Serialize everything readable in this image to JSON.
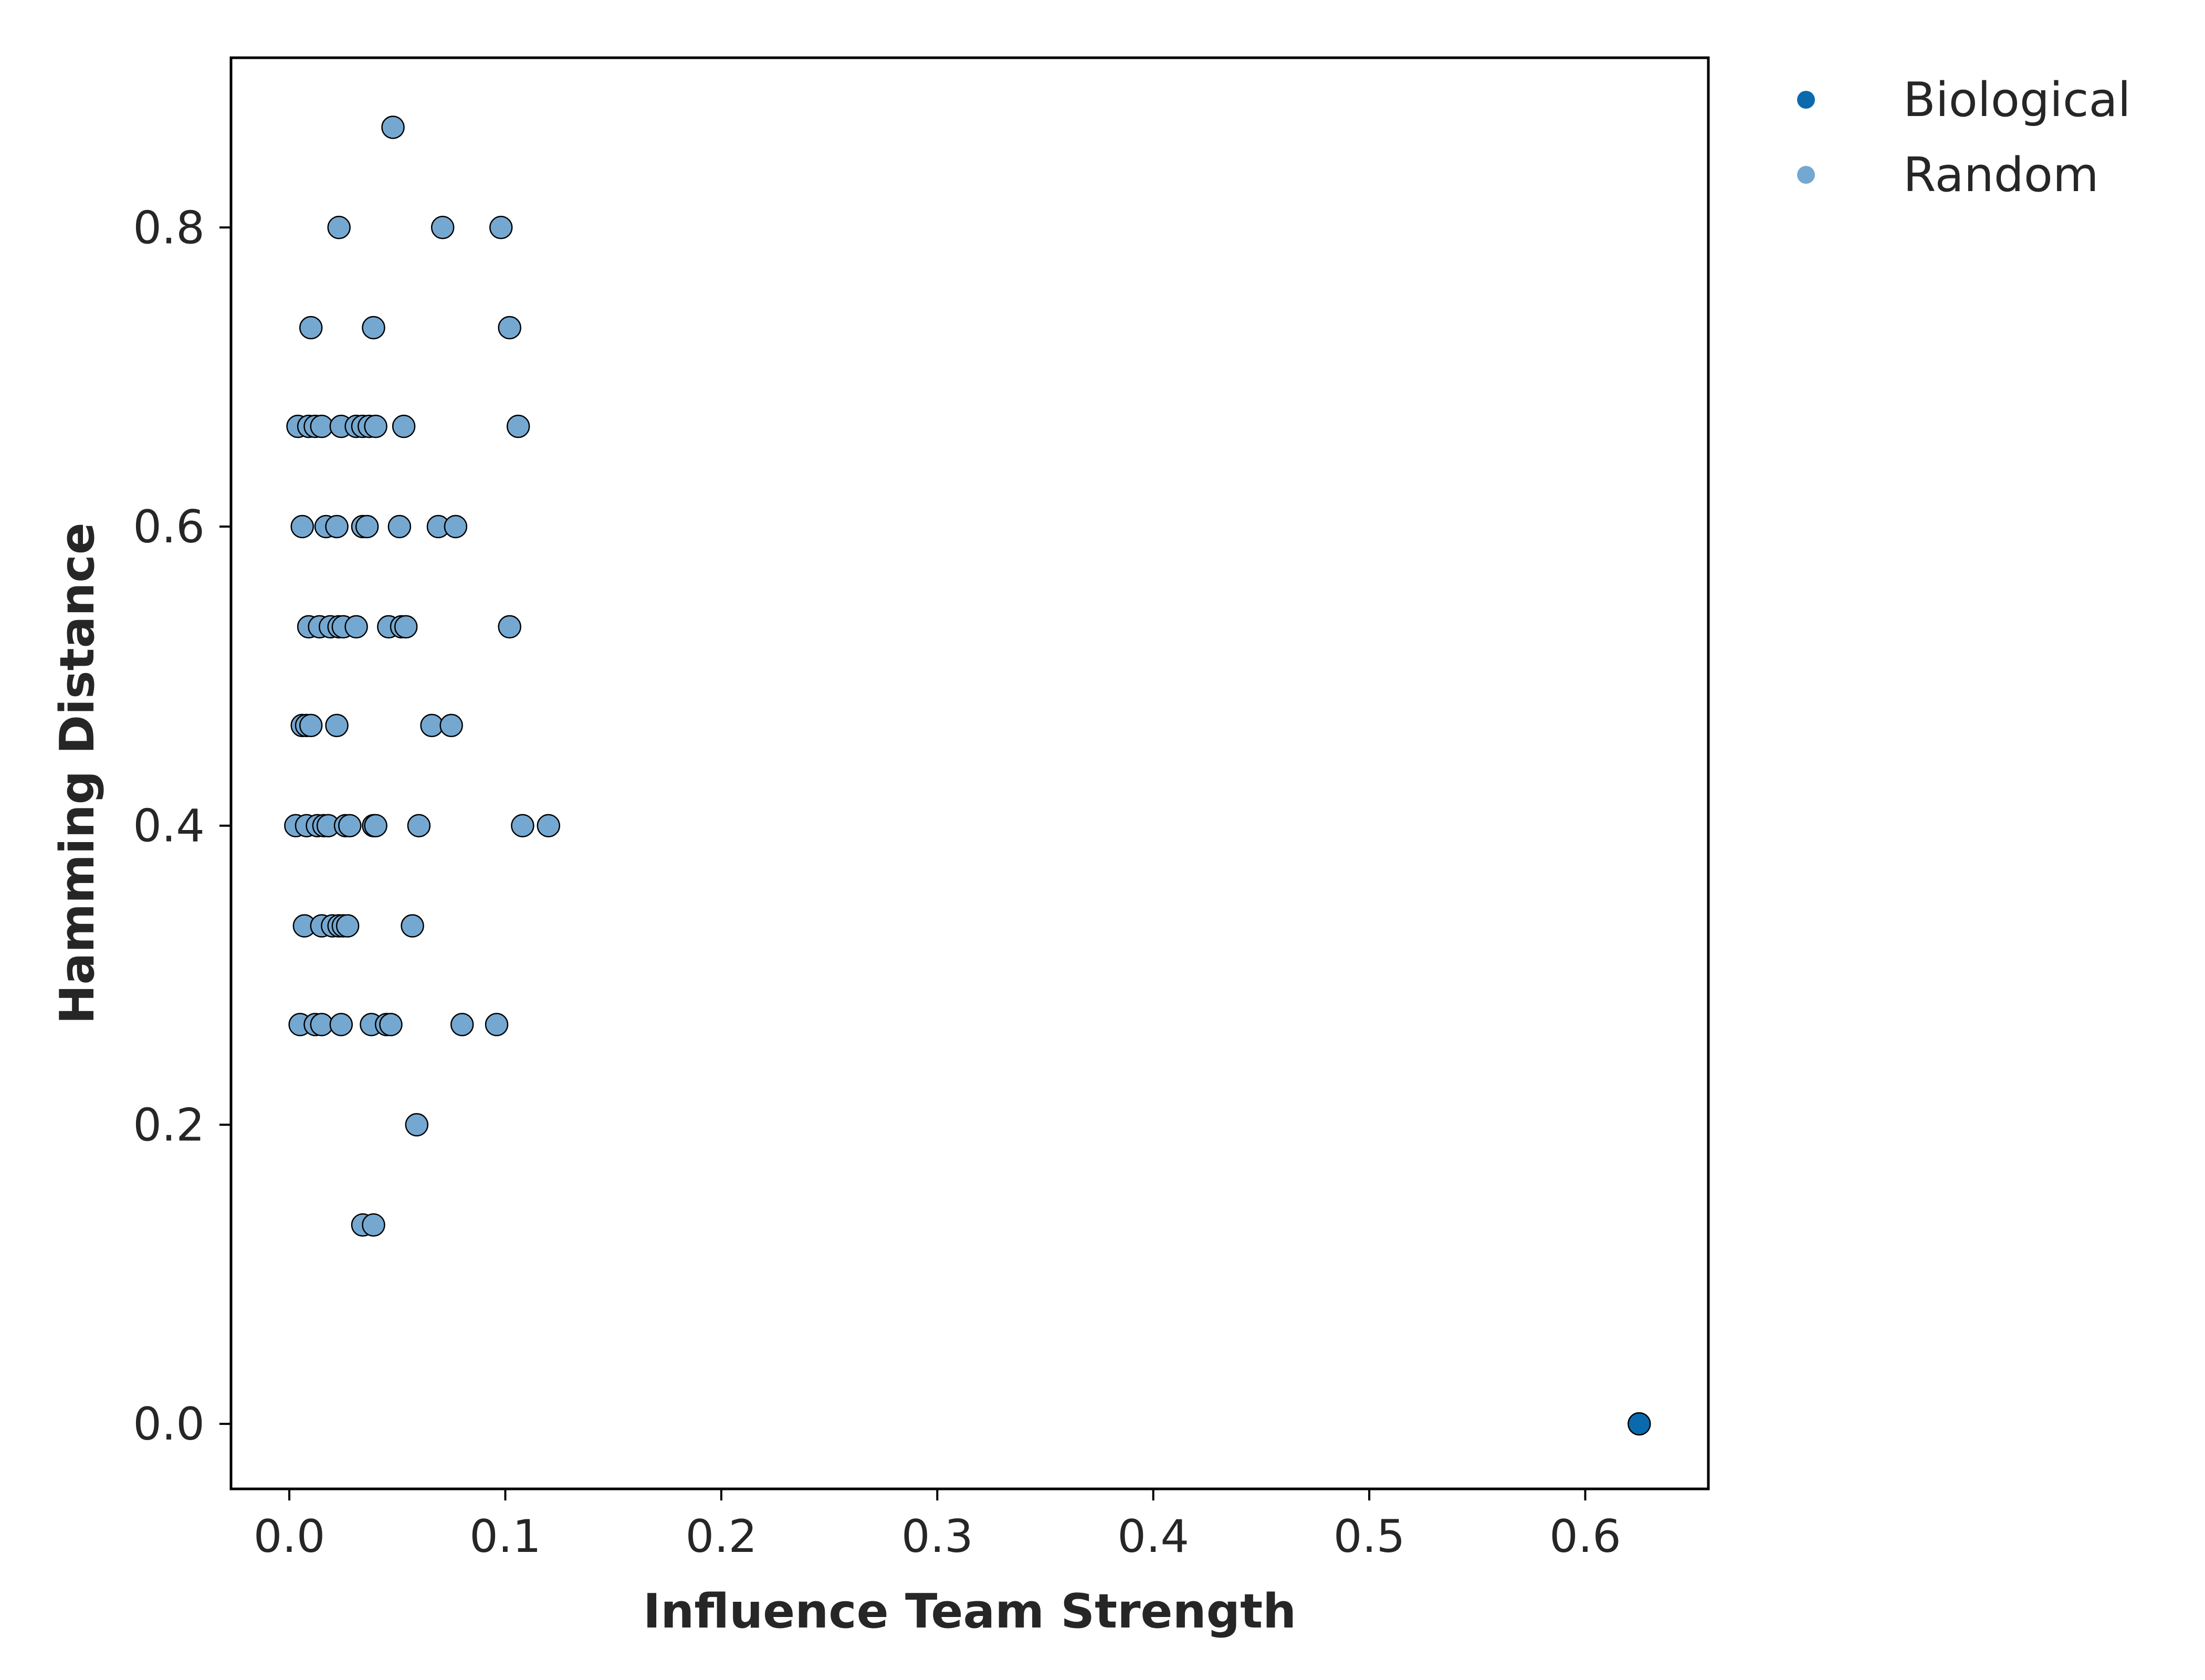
{
  "chart_data": {
    "type": "scatter",
    "title": "",
    "xlabel": "Influence Team Strength",
    "ylabel": "Hamming Distance",
    "xlim": [
      -0.027,
      0.657
    ],
    "ylim": [
      -0.0435,
      0.9135
    ],
    "xticks": [
      0.0,
      0.1,
      0.2,
      0.3,
      0.4,
      0.5,
      0.6
    ],
    "xtick_labels": [
      "0.0",
      "0.1",
      "0.2",
      "0.3",
      "0.4",
      "0.5",
      "0.6"
    ],
    "yticks": [
      0.0,
      0.2,
      0.4,
      0.6,
      0.8
    ],
    "ytick_labels": [
      "0.0",
      "0.2",
      "0.4",
      "0.6",
      "0.8"
    ],
    "grid": false,
    "legend_position": "outside-top-right",
    "series": [
      {
        "name": "Biological",
        "color": "#0a6aad",
        "points": [
          [
            0.625,
            0.0
          ]
        ]
      },
      {
        "name": "Random",
        "color": "#75a8d1",
        "points": [
          [
            0.048,
            0.867
          ],
          [
            0.023,
            0.8
          ],
          [
            0.071,
            0.8
          ],
          [
            0.098,
            0.8
          ],
          [
            0.01,
            0.733
          ],
          [
            0.039,
            0.733
          ],
          [
            0.102,
            0.733
          ],
          [
            0.004,
            0.667
          ],
          [
            0.009,
            0.667
          ],
          [
            0.012,
            0.667
          ],
          [
            0.015,
            0.667
          ],
          [
            0.024,
            0.667
          ],
          [
            0.031,
            0.667
          ],
          [
            0.034,
            0.667
          ],
          [
            0.037,
            0.667
          ],
          [
            0.04,
            0.667
          ],
          [
            0.053,
            0.667
          ],
          [
            0.106,
            0.667
          ],
          [
            0.006,
            0.6
          ],
          [
            0.017,
            0.6
          ],
          [
            0.022,
            0.6
          ],
          [
            0.034,
            0.6
          ],
          [
            0.036,
            0.6
          ],
          [
            0.051,
            0.6
          ],
          [
            0.069,
            0.6
          ],
          [
            0.077,
            0.6
          ],
          [
            0.009,
            0.533
          ],
          [
            0.014,
            0.533
          ],
          [
            0.019,
            0.533
          ],
          [
            0.023,
            0.533
          ],
          [
            0.025,
            0.533
          ],
          [
            0.031,
            0.533
          ],
          [
            0.046,
            0.533
          ],
          [
            0.052,
            0.533
          ],
          [
            0.054,
            0.533
          ],
          [
            0.102,
            0.533
          ],
          [
            0.006,
            0.467
          ],
          [
            0.008,
            0.467
          ],
          [
            0.01,
            0.467
          ],
          [
            0.022,
            0.467
          ],
          [
            0.066,
            0.467
          ],
          [
            0.075,
            0.467
          ],
          [
            0.003,
            0.4
          ],
          [
            0.008,
            0.4
          ],
          [
            0.013,
            0.4
          ],
          [
            0.016,
            0.4
          ],
          [
            0.018,
            0.4
          ],
          [
            0.026,
            0.4
          ],
          [
            0.028,
            0.4
          ],
          [
            0.039,
            0.4
          ],
          [
            0.04,
            0.4
          ],
          [
            0.06,
            0.4
          ],
          [
            0.108,
            0.4
          ],
          [
            0.12,
            0.4
          ],
          [
            0.007,
            0.333
          ],
          [
            0.015,
            0.333
          ],
          [
            0.02,
            0.333
          ],
          [
            0.023,
            0.333
          ],
          [
            0.025,
            0.333
          ],
          [
            0.027,
            0.333
          ],
          [
            0.057,
            0.333
          ],
          [
            0.005,
            0.267
          ],
          [
            0.012,
            0.267
          ],
          [
            0.015,
            0.267
          ],
          [
            0.024,
            0.267
          ],
          [
            0.038,
            0.267
          ],
          [
            0.045,
            0.267
          ],
          [
            0.047,
            0.267
          ],
          [
            0.08,
            0.267
          ],
          [
            0.096,
            0.267
          ],
          [
            0.059,
            0.2
          ],
          [
            0.034,
            0.133
          ],
          [
            0.039,
            0.133
          ]
        ]
      }
    ]
  }
}
